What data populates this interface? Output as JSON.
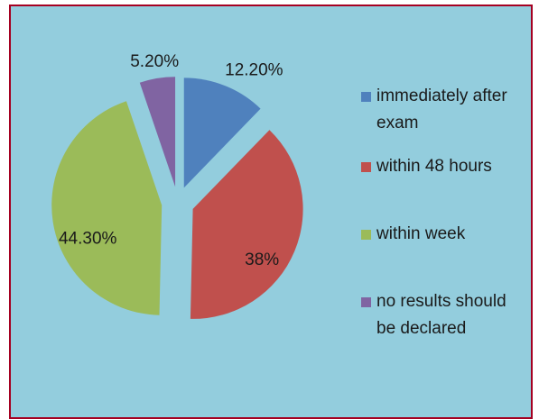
{
  "chart_data": {
    "type": "pie",
    "categories": [
      "immediately after exam",
      "within 48 hours",
      "within week",
      "no results should be declared"
    ],
    "values": [
      12.2,
      38,
      44.3,
      5.2
    ],
    "value_labels": [
      "12.20%",
      "38%",
      "44.30%",
      "5.20%"
    ],
    "colors": [
      "#4f81bd",
      "#c0504d",
      "#9bbb59",
      "#8064a2"
    ],
    "legend": "right",
    "exploded": true
  }
}
